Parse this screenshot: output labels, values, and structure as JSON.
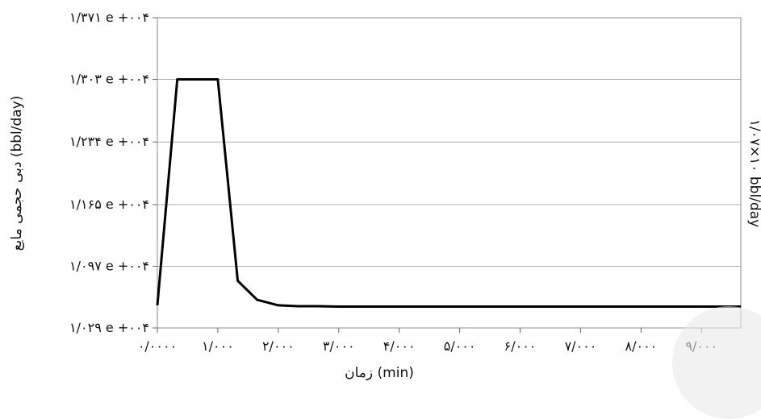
{
  "chart_data": {
    "type": "line",
    "y_axis_title": "دبی حجمی مایع (bbl/day)",
    "x_axis_title": "زمان (min)",
    "right_axis_label": "۱/۰۷×۱۰ bbl/day",
    "x_tick_labels": [
      "۰/۰۰۰۰",
      "۱/۰۰۰",
      "۲/۰۰۰",
      "۳/۰۰۰",
      "۴/۰۰۰",
      "۵/۰۰۰",
      "۶/۰۰۰",
      "۷/۰۰۰",
      "۸/۰۰۰",
      "۹/۰۰۰"
    ],
    "y_tick_labels": [
      "۱/۰۲۹ e +۰۰۴",
      "۱/۰۹۷ e +۰۰۴",
      "۱/۱۶۵ e +۰۰۴",
      "۱/۲۳۴ e +۰۰۴",
      "۱/۳۰۳ e +۰۰۴",
      "۱/۳۷۱ e +۰۰۴"
    ],
    "x_ticks": [
      0,
      1000,
      2000,
      3000,
      4000,
      5000,
      6000,
      7000,
      8000,
      9000
    ],
    "y_ticks": [
      10290,
      10970,
      11650,
      12340,
      13030,
      13710
    ],
    "xlim": [
      0,
      9650
    ],
    "ylim": [
      10290,
      13710
    ],
    "grid": "horizontal",
    "series": [
      {
        "x": [
          0,
          330,
          1000,
          1330,
          1650,
          2000,
          2330,
          2650,
          3000,
          9650
        ],
        "y": [
          10540,
          13030,
          13030,
          10810,
          10600,
          10540,
          10530,
          10530,
          10525,
          10525
        ]
      }
    ]
  }
}
